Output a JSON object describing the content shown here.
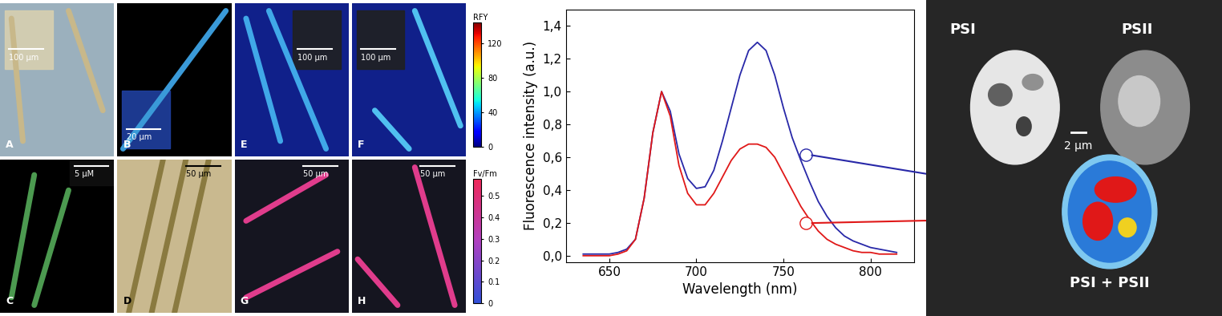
{
  "panels": [
    {
      "label": "A",
      "scale_bar": "100 µm"
    },
    {
      "label": "B",
      "scale_bar": "20 µm"
    },
    {
      "label": "E",
      "scale_bar": "100 µm"
    },
    {
      "label": "F",
      "scale_bar": "100 µm"
    },
    {
      "label": "C",
      "scale_bar": "5 µM"
    },
    {
      "label": "D",
      "scale_bar": "50 µm"
    },
    {
      "label": "G",
      "scale_bar": "50 µm"
    },
    {
      "label": "H",
      "scale_bar": "50 µm"
    }
  ],
  "colorbars": [
    {
      "label": "RFY",
      "range": [
        0,
        145
      ],
      "ticks": [
        0,
        40,
        80,
        120
      ]
    },
    {
      "label": "Fv/Fm",
      "range": [
        0,
        0.58
      ],
      "ticks": [
        0,
        0.1,
        0.2,
        0.3,
        0.4,
        0.5
      ]
    }
  ],
  "chart_data": {
    "type": "line",
    "x_label": "Wavelength (nm)",
    "y_label": "Fluorescence intensity (a.u.)",
    "x": [
      635,
      640,
      645,
      650,
      655,
      660,
      665,
      670,
      675,
      680,
      685,
      690,
      695,
      700,
      705,
      710,
      715,
      720,
      725,
      730,
      735,
      740,
      745,
      750,
      755,
      760,
      765,
      770,
      775,
      780,
      785,
      790,
      795,
      800,
      805,
      810,
      815
    ],
    "series": [
      {
        "color": "#2828a8",
        "values": [
          0.01,
          0.01,
          0.01,
          0.01,
          0.02,
          0.04,
          0.1,
          0.35,
          0.75,
          1.0,
          0.88,
          0.62,
          0.47,
          0.41,
          0.42,
          0.52,
          0.7,
          0.9,
          1.1,
          1.25,
          1.3,
          1.25,
          1.1,
          0.9,
          0.72,
          0.58,
          0.45,
          0.33,
          0.24,
          0.17,
          0.12,
          0.09,
          0.07,
          0.05,
          0.04,
          0.03,
          0.02
        ]
      },
      {
        "color": "#e01818",
        "values": [
          0.0,
          0.0,
          0.0,
          0.0,
          0.01,
          0.03,
          0.1,
          0.35,
          0.75,
          1.0,
          0.85,
          0.55,
          0.38,
          0.31,
          0.31,
          0.38,
          0.48,
          0.58,
          0.65,
          0.68,
          0.68,
          0.66,
          0.6,
          0.5,
          0.4,
          0.3,
          0.22,
          0.15,
          0.1,
          0.07,
          0.05,
          0.03,
          0.02,
          0.02,
          0.01,
          0.01,
          0.01
        ]
      }
    ],
    "xlim": [
      625,
      825
    ],
    "xticks": [
      650,
      700,
      750,
      800
    ],
    "ylim": [
      -0.04,
      1.5
    ],
    "yticks": [
      {
        "value": 0.0,
        "label": "0,0"
      },
      {
        "value": 0.2,
        "label": "0,2"
      },
      {
        "value": 0.4,
        "label": "0,4"
      },
      {
        "value": 0.6,
        "label": "0,6"
      },
      {
        "value": 0.8,
        "label": "0,8"
      },
      {
        "value": 1.0,
        "label": "1,0"
      },
      {
        "value": 1.2,
        "label": "1,2"
      },
      {
        "value": 1.4,
        "label": "1,4"
      }
    ],
    "grid": false
  },
  "images": {
    "left_label": "PSI",
    "right_label": "PSII",
    "scale_bar": "2 µm",
    "bottom_label": "PSI + PSII"
  }
}
